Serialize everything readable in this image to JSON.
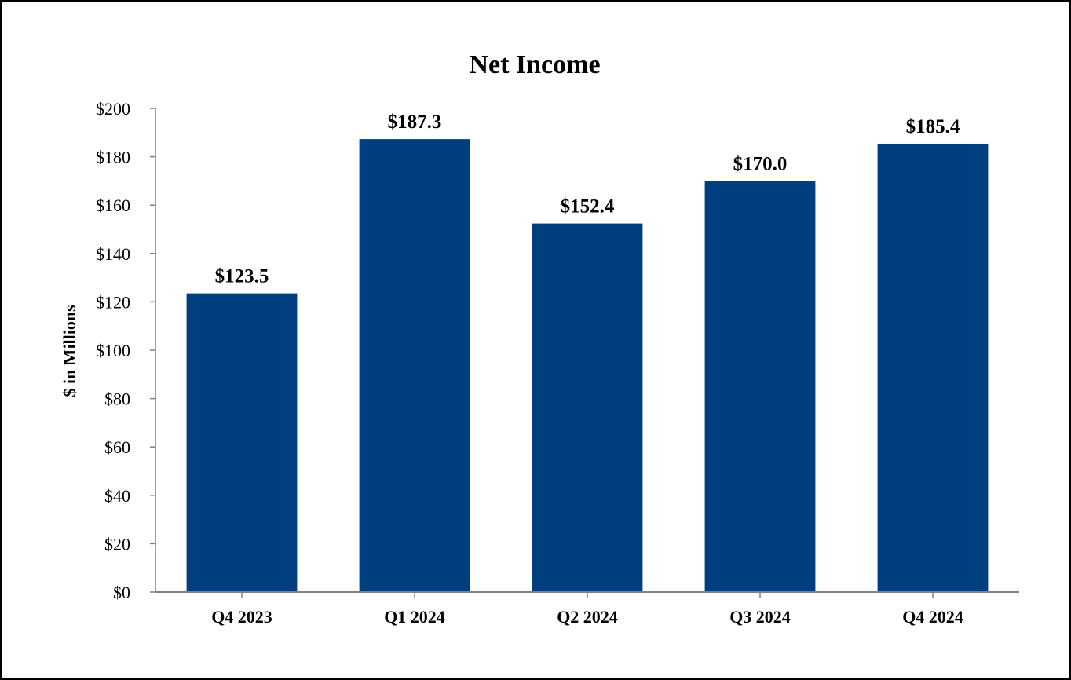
{
  "chart_data": {
    "type": "bar",
    "title": "Net Income",
    "xlabel": "",
    "ylabel": "$ in Millions",
    "categories": [
      "Q4 2023",
      "Q1 2024",
      "Q2 2024",
      "Q3 2024",
      "Q4 2024"
    ],
    "values": [
      123.5,
      187.3,
      152.4,
      170.0,
      185.4
    ],
    "data_labels": [
      "$123.5",
      "$187.3",
      "$152.4",
      "$170.0",
      "$185.4"
    ],
    "ylim": [
      0,
      200
    ],
    "yticks": [
      0,
      20,
      40,
      60,
      80,
      100,
      120,
      140,
      160,
      180,
      200
    ],
    "ytick_labels": [
      "$0",
      "$20",
      "$40",
      "$60",
      "$80",
      "$100",
      "$120",
      "$140",
      "$160",
      "$180",
      "$200"
    ],
    "grid": false,
    "legend": "none",
    "bar_color": "#003f7f",
    "axis_color": "#808080"
  }
}
